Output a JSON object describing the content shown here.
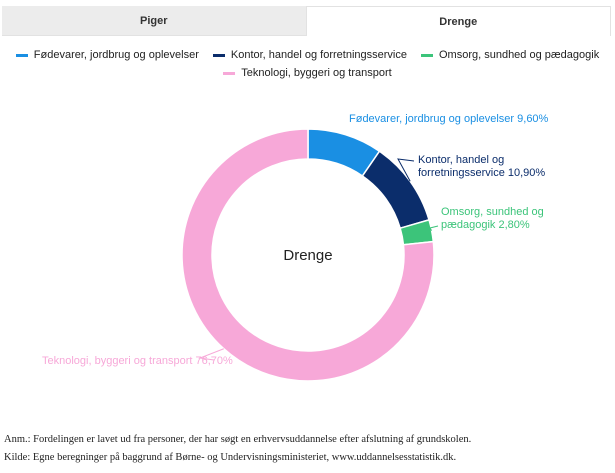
{
  "tabs": [
    {
      "label": "Piger",
      "active": false
    },
    {
      "label": "Drenge",
      "active": true
    }
  ],
  "chart_data": {
    "type": "pie",
    "variant": "donut",
    "center_label": "Drenge",
    "legend_position": "top",
    "series": [
      {
        "name": "Fødevarer, jordbrug og oplevelser",
        "value": 9.6,
        "label": "Fødevarer, jordbrug og oplevelser 9,60%",
        "color": "#1a8fe3"
      },
      {
        "name": "Kontor, handel og forretningsservice",
        "value": 10.9,
        "label_lines": [
          "Kontor, handel og",
          "forretningsservice 10,90%"
        ],
        "color": "#0b2d6b"
      },
      {
        "name": "Omsorg, sundhed og pædagogik",
        "value": 2.8,
        "label_lines": [
          "Omsorg, sundhed og",
          "pædagogik 2,80%"
        ],
        "color": "#3cc47a"
      },
      {
        "name": "Teknologi, byggeri og transport",
        "value": 76.7,
        "label": "Teknologi, byggeri og transport 76,70%",
        "color": "#f7a8d8"
      }
    ]
  },
  "footnotes": {
    "note": "Anm.: Fordelingen er lavet ud fra personer, der har søgt en erhvervsuddannelse efter afslutning af grundskolen.",
    "source": "Kilde: Egne beregninger på baggrund af Børne- og Undervisningsministeriet, www.uddannelsesstatistik.dk."
  }
}
